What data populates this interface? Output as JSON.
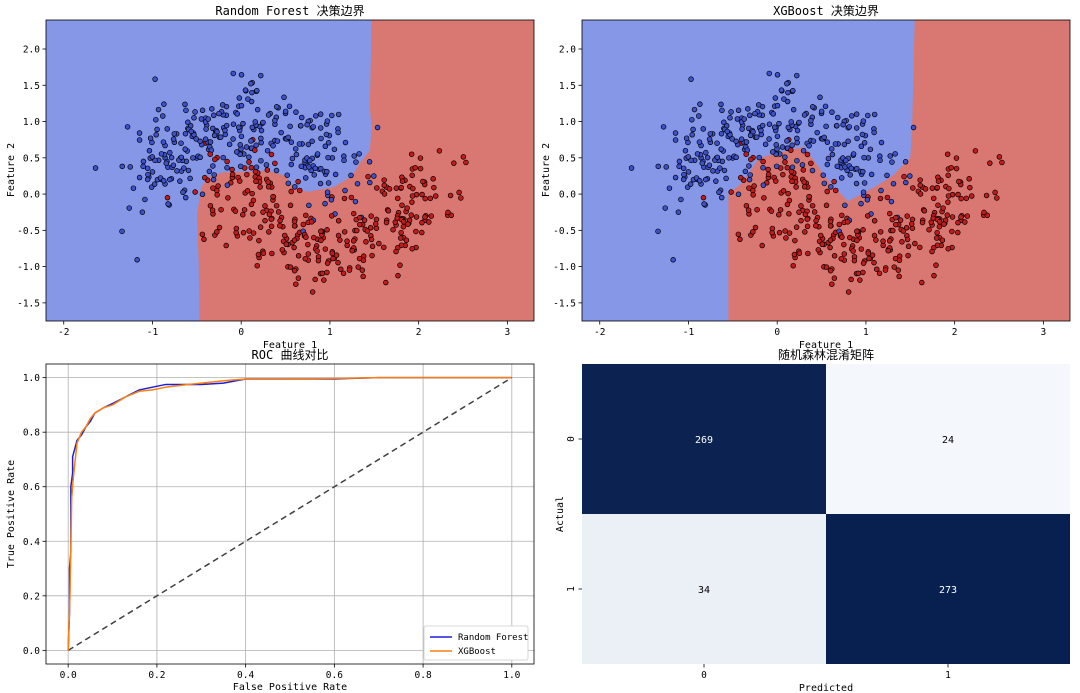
{
  "chart_data": [
    {
      "type": "scatter",
      "title": "Random Forest 决策边界",
      "xlabel": "Feature 1",
      "ylabel": "Feature 2",
      "xlim": [
        -2.2,
        3.3
      ],
      "ylim": [
        -1.75,
        2.4
      ],
      "xticks": [
        -2,
        -1,
        0,
        1,
        2,
        3
      ],
      "yticks": [
        -1.5,
        -1.0,
        -0.5,
        0.0,
        0.5,
        1.0,
        1.5,
        2.0
      ],
      "region_colors": {
        "class0": "#8597e6",
        "class1": "#d97872"
      },
      "boundary": [
        [
          -0.47,
          -1.75
        ],
        [
          -0.48,
          -0.9
        ],
        [
          -0.5,
          -0.3
        ],
        [
          -0.45,
          0.1
        ],
        [
          -0.35,
          0.25
        ],
        [
          -0.2,
          0.3
        ],
        [
          0.3,
          0.32
        ],
        [
          0.5,
          0.25
        ],
        [
          0.6,
          0.08
        ],
        [
          0.75,
          0.03
        ],
        [
          1.05,
          0.1
        ],
        [
          1.25,
          0.25
        ],
        [
          1.35,
          0.45
        ],
        [
          1.45,
          0.6
        ],
        [
          1.47,
          0.9
        ],
        [
          1.45,
          1.2
        ],
        [
          1.47,
          2.4
        ]
      ],
      "point_colors": {
        "class0": "#3f51c9",
        "class1": "#c21b1b"
      }
    },
    {
      "type": "scatter",
      "title": "XGBoost 决策边界",
      "xlabel": "Feature 1",
      "ylabel": "Feature 2",
      "xlim": [
        -2.2,
        3.3
      ],
      "ylim": [
        -1.75,
        2.4
      ],
      "xticks": [
        -2,
        -1,
        0,
        1,
        2,
        3
      ],
      "yticks": [
        -1.5,
        -1.0,
        -0.5,
        0.0,
        0.5,
        1.0,
        1.5,
        2.0
      ],
      "region_colors": {
        "class0": "#8597e6",
        "class1": "#d97872"
      },
      "boundary": [
        [
          -0.55,
          -1.75
        ],
        [
          -0.55,
          0.0
        ],
        [
          -0.4,
          0.15
        ],
        [
          -0.2,
          0.5
        ],
        [
          0.3,
          0.65
        ],
        [
          0.6,
          0.15
        ],
        [
          0.8,
          -0.1
        ],
        [
          1.1,
          0.1
        ],
        [
          1.3,
          0.25
        ],
        [
          1.5,
          0.5
        ],
        [
          1.52,
          0.9
        ],
        [
          1.55,
          2.4
        ]
      ],
      "point_colors": {
        "class0": "#3f51c9",
        "class1": "#c21b1b"
      }
    },
    {
      "type": "line",
      "title": "ROC 曲线对比",
      "xlabel": "False Positive Rate",
      "ylabel": "True Positive Rate",
      "xlim": [
        -0.05,
        1.05
      ],
      "ylim": [
        -0.05,
        1.05
      ],
      "xticks": [
        0.0,
        0.2,
        0.4,
        0.6,
        0.8,
        1.0
      ],
      "yticks": [
        0.0,
        0.2,
        0.4,
        0.6,
        0.8,
        1.0
      ],
      "grid": true,
      "legend": "bottom-right",
      "series": [
        {
          "name": "Random Forest",
          "color": "#1f1fd6",
          "x": [
            0,
            0.003,
            0.003,
            0.006,
            0.006,
            0.01,
            0.01,
            0.015,
            0.02,
            0.03,
            0.04,
            0.05,
            0.06,
            0.08,
            0.1,
            0.13,
            0.16,
            0.19,
            0.22,
            0.26,
            0.3,
            0.35,
            0.4,
            0.45,
            0.5,
            0.55,
            0.6,
            0.63,
            0.7,
            0.8,
            0.9,
            1.0
          ],
          "y": [
            0,
            0.14,
            0.3,
            0.36,
            0.6,
            0.65,
            0.71,
            0.74,
            0.77,
            0.79,
            0.82,
            0.84,
            0.87,
            0.89,
            0.905,
            0.93,
            0.955,
            0.965,
            0.975,
            0.975,
            0.975,
            0.98,
            0.995,
            0.995,
            0.995,
            0.995,
            0.995,
            0.997,
            1.0,
            1.0,
            1.0,
            1.0
          ]
        },
        {
          "name": "XGBoost",
          "color": "#ff7f0e",
          "x": [
            0,
            0.004,
            0.006,
            0.008,
            0.012,
            0.016,
            0.02,
            0.03,
            0.04,
            0.05,
            0.06,
            0.08,
            0.1,
            0.13,
            0.16,
            0.19,
            0.22,
            0.27,
            0.3,
            0.36,
            0.4,
            0.45,
            0.5,
            0.6,
            0.7,
            0.8,
            0.9,
            1.0
          ],
          "y": [
            0,
            0.2,
            0.38,
            0.56,
            0.64,
            0.7,
            0.76,
            0.8,
            0.82,
            0.85,
            0.87,
            0.89,
            0.9,
            0.93,
            0.95,
            0.955,
            0.965,
            0.975,
            0.98,
            0.99,
            0.995,
            0.995,
            0.995,
            0.997,
            1.0,
            1.0,
            1.0,
            1.0
          ]
        },
        {
          "name": "",
          "color": "#404040",
          "dashed": true,
          "x": [
            0,
            1
          ],
          "y": [
            0,
            1
          ]
        }
      ]
    },
    {
      "type": "heatmap",
      "title": "随机森林混淆矩阵",
      "xlabel": "Predicted",
      "ylabel": "Actual",
      "x_categories": [
        "0",
        "1"
      ],
      "y_categories": [
        "0",
        "1"
      ],
      "values": [
        [
          269,
          24
        ],
        [
          34,
          273
        ]
      ],
      "colormap": [
        "#f4f8fd",
        "#08204f"
      ]
    }
  ]
}
